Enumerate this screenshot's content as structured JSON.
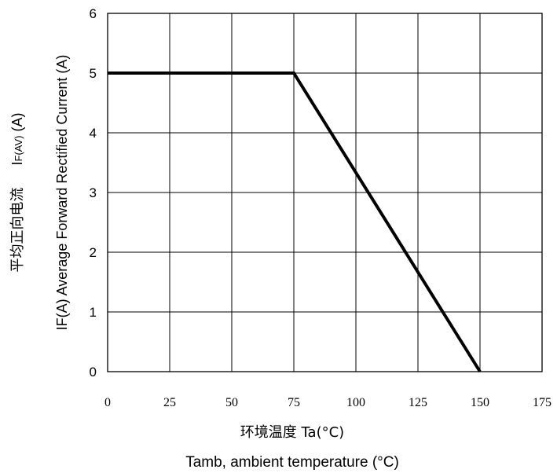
{
  "chart_data": {
    "type": "line",
    "x_axis": {
      "label_cn": "环境温度 Ta(°C)",
      "label_en": "Tamb, ambient temperature (°C)",
      "range": [
        0,
        175
      ],
      "ticks": [
        0,
        25,
        50,
        75,
        100,
        125,
        150,
        175
      ]
    },
    "y_axis": {
      "label_cn": "平均正向电流",
      "label_symbol_main": "I",
      "label_symbol_sub": "F(AV)",
      "label_symbol_unit": " (A)",
      "label_en": "IF(A)  Average Forward Rectified Current (A)",
      "range": [
        0,
        6
      ],
      "ticks": [
        0,
        1,
        2,
        3,
        4,
        5,
        6
      ]
    },
    "grid": true,
    "series": [
      {
        "points": [
          {
            "x": 0,
            "y": 5
          },
          {
            "x": 75,
            "y": 5
          },
          {
            "x": 150,
            "y": 0
          }
        ],
        "color": "#000000"
      }
    ]
  }
}
